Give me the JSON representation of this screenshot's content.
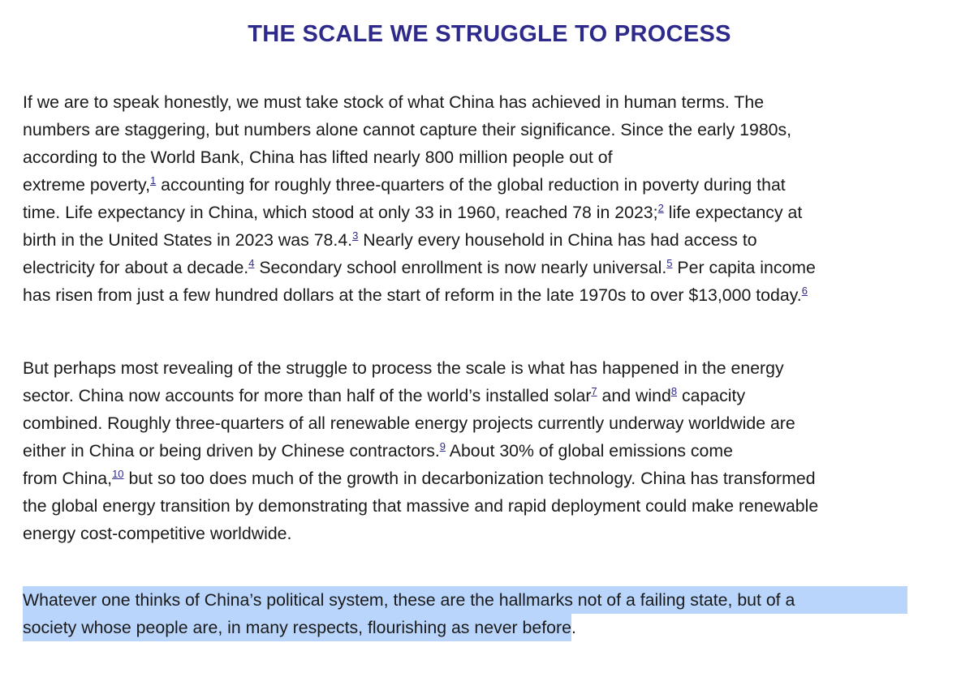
{
  "title": "THE SCALE WE STRUGGLE TO PROCESS",
  "paragraph1": {
    "l1": "If we are to speak honestly, we must take stock of what China has achieved in human terms. The",
    "l2": "numbers are staggering, but numbers alone cannot capture their significance. Since the early 1980s,",
    "l3": "according to the World Bank, China has lifted nearly 800 million people out of",
    "l4a": "extreme poverty,",
    "fn1": "1",
    "l4b": " accounting for roughly three-quarters of the global reduction in poverty during that",
    "l5a": "time. Life expectancy in China, which stood at only 33 in 1960, reached 78 in 2023;",
    "fn2": "2",
    "l5b": " life expectancy at",
    "l6a": "birth in the United States in 2023 was 78.4.",
    "fn3": "3",
    "l6b": " Nearly every household in China has had access to",
    "l7a": "electricity for about a decade.",
    "fn4": "4",
    "l7b": " Secondary school enrollment is now nearly universal.",
    "fn5": "5",
    "l7c": " Per capita income",
    "l8a": "has risen from just a few hundred dollars at the start of reform in the late 1970s to over $13,000 today.",
    "fn6": "6"
  },
  "paragraph2": {
    "l1": "But perhaps most revealing of the struggle to process the scale is what has happened in the energy",
    "l2a": "sector. China now accounts for more than half of the world’s installed solar",
    "fn7": "7",
    "l2b": " and wind",
    "fn8": "8",
    "l2c": " capacity",
    "l3": "combined. Roughly three-quarters of all renewable energy projects currently underway worldwide are",
    "l4a": "either in China or being driven by Chinese contractors.",
    "fn9": "9",
    "l4b": " About 30% of global emissions come",
    "l5a": "from China,",
    "fn10": "10",
    "l5b": " but so too does much of the growth in decarbonization technology. China has transformed",
    "l6": "the global energy transition by demonstrating that massive and rapid deployment could make renewable",
    "l7": "energy cost-competitive worldwide."
  },
  "paragraph3": {
    "l1": "Whatever one thinks of China’s political system, these are the hallmarks not of a failing state, but of a",
    "l2": "society whose people are, in many respects, flourishing as never before",
    "l2end": "."
  },
  "colors": {
    "title": "#2e2a8c",
    "highlight": "#b9d5fb",
    "text": "#1a1a1a"
  }
}
